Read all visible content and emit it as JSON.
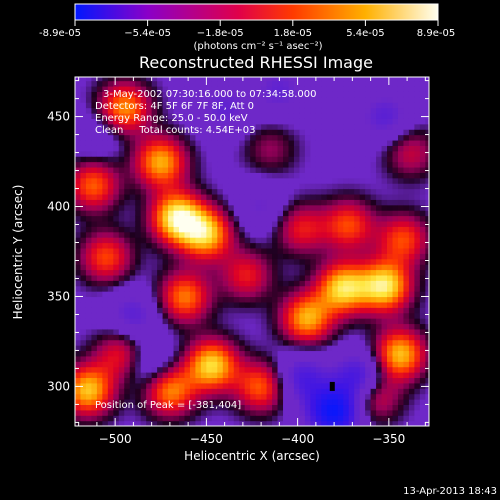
{
  "colorbar": {
    "tick_labels": [
      "-8.9e-05",
      "−5.4e-05",
      "−1.8e-05",
      "1.8e-05",
      "5.4e-05",
      "8.9e-05"
    ],
    "range": [
      -8.9e-05,
      8.9e-05
    ],
    "units_label": "(photons cm⁻² s⁻¹ asec⁻²)",
    "colors": [
      "#0018ff",
      "#8a00c8",
      "#e0004a",
      "#ff3a00",
      "#ffb000",
      "#fffff0"
    ]
  },
  "chart_data": {
    "type": "heatmap",
    "title": "Reconstructed RHESSI Image",
    "xlabel": "Heliocentric X (arcsec)",
    "ylabel": "Heliocentric Y (arcsec)",
    "xlim": [
      -522,
      -328
    ],
    "ylim": [
      278,
      472
    ],
    "x_ticks": [
      -500,
      -450,
      -400,
      -350
    ],
    "y_ticks": [
      300,
      350,
      400,
      450
    ],
    "x_tick_labels": [
      "−500",
      "−450",
      "−400",
      "−350"
    ],
    "y_tick_labels": [
      "300",
      "350",
      "400",
      "450"
    ],
    "annotations": [
      "3-May-2002 07:30:16.000 to 07:34:58.000",
      "Detectors: 4F 5F 6F 7F 8F, Att 0",
      "Energy Range: 25.0 - 50.0 keV",
      "Clean     Total counts: 4.54E+03"
    ],
    "peak_label": "Position of Peak = [-381,404]",
    "peak": [
      -381,
      404
    ],
    "blobs": [
      {
        "x": -466,
        "y": 394,
        "v": 0.95
      },
      {
        "x": -450,
        "y": 385,
        "v": 0.8
      },
      {
        "x": -475,
        "y": 425,
        "v": 0.75
      },
      {
        "x": -495,
        "y": 455,
        "v": 0.7
      },
      {
        "x": -512,
        "y": 412,
        "v": 0.6
      },
      {
        "x": -505,
        "y": 372,
        "v": 0.55
      },
      {
        "x": -462,
        "y": 350,
        "v": 0.65
      },
      {
        "x": -447,
        "y": 312,
        "v": 0.85
      },
      {
        "x": -470,
        "y": 298,
        "v": 0.7
      },
      {
        "x": -420,
        "y": 300,
        "v": 0.6
      },
      {
        "x": -395,
        "y": 338,
        "v": 0.75
      },
      {
        "x": -375,
        "y": 355,
        "v": 0.85
      },
      {
        "x": -352,
        "y": 356,
        "v": 0.9
      },
      {
        "x": -342,
        "y": 382,
        "v": 0.55
      },
      {
        "x": -372,
        "y": 390,
        "v": 0.55
      },
      {
        "x": -398,
        "y": 388,
        "v": 0.45
      },
      {
        "x": -344,
        "y": 318,
        "v": 0.8
      },
      {
        "x": -358,
        "y": 295,
        "v": 0.5
      },
      {
        "x": -338,
        "y": 430,
        "v": 0.35
      },
      {
        "x": -415,
        "y": 432,
        "v": 0.25
      },
      {
        "x": -515,
        "y": 298,
        "v": 0.8
      },
      {
        "x": -497,
        "y": 318,
        "v": 0.45
      },
      {
        "x": -428,
        "y": 362,
        "v": 0.45
      },
      {
        "x": -410,
        "y": 465,
        "v": -0.3
      },
      {
        "x": -490,
        "y": 340,
        "v": -0.35
      },
      {
        "x": -380,
        "y": 286,
        "v": -0.9
      },
      {
        "x": -365,
        "y": 305,
        "v": -0.6
      },
      {
        "x": -398,
        "y": 305,
        "v": -0.45
      },
      {
        "x": -440,
        "y": 455,
        "v": -0.3
      },
      {
        "x": -352,
        "y": 450,
        "v": -0.35
      },
      {
        "x": -480,
        "y": 312,
        "v": -0.3
      },
      {
        "x": -420,
        "y": 400,
        "v": -0.25
      },
      {
        "x": -510,
        "y": 440,
        "v": -0.2
      }
    ]
  },
  "footer": {
    "timestamp": "13-Apr-2013 18:43"
  }
}
